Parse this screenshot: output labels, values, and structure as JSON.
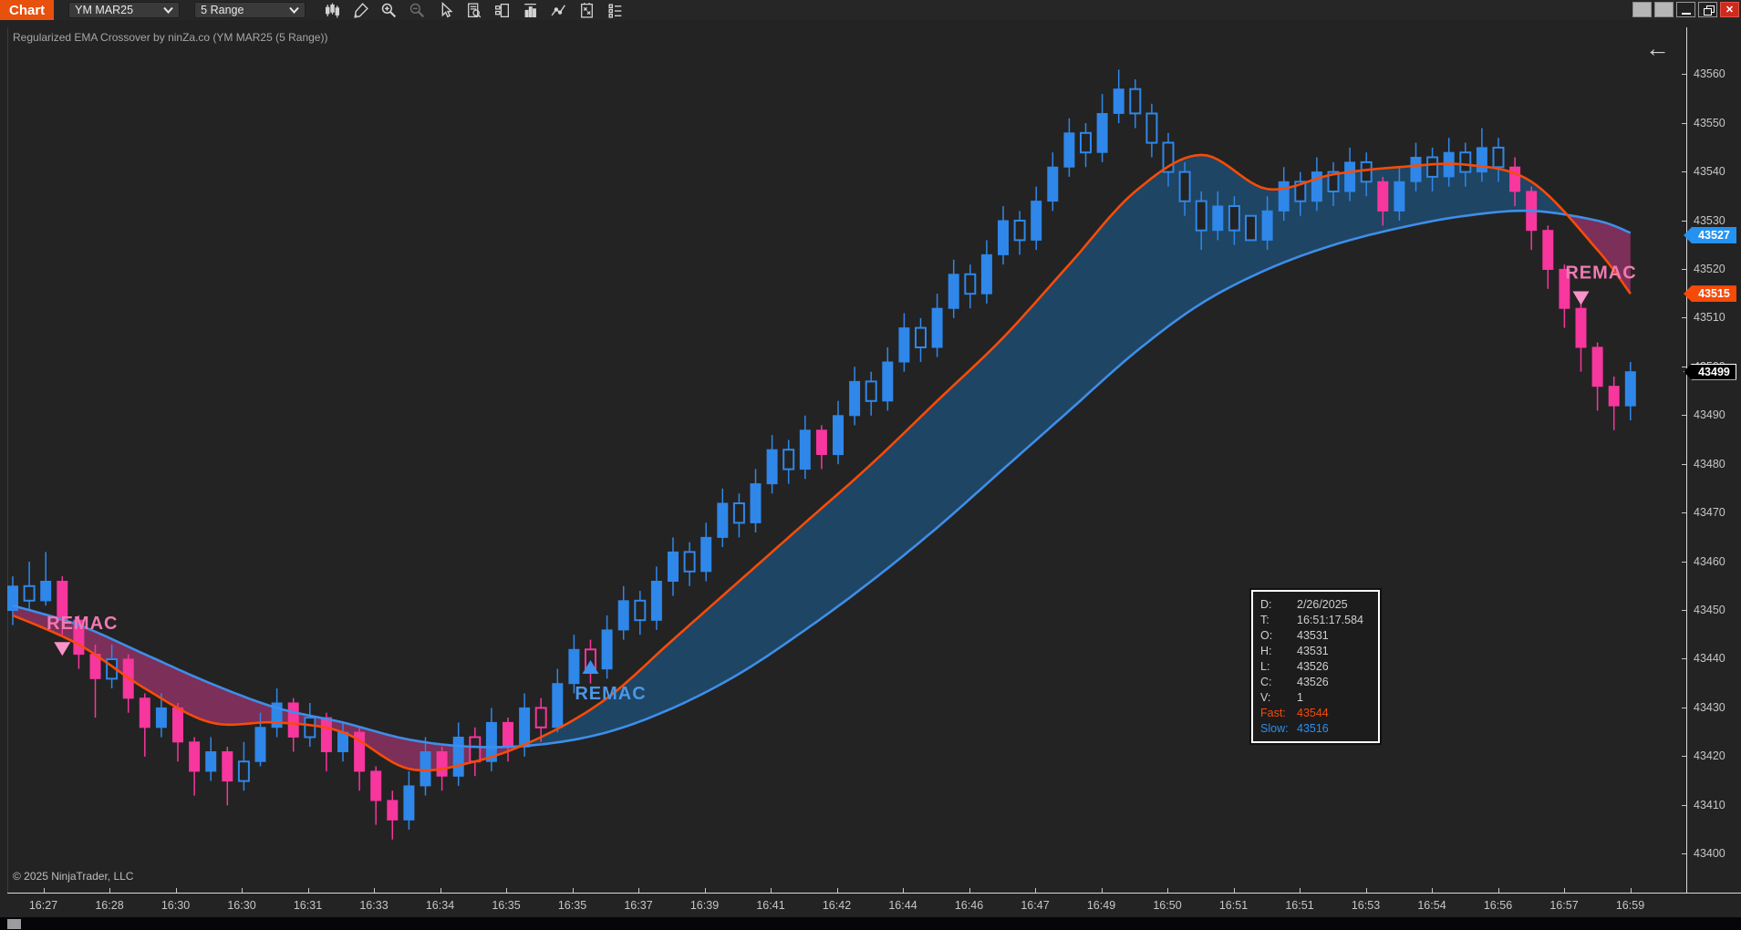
{
  "titlebar": {
    "tab_label": "Chart",
    "instrument": "YM MAR25",
    "period": "5 Range"
  },
  "toolbar": {
    "icons": [
      "chart-style",
      "drawing-tools",
      "zoom-in",
      "zoom-out",
      "cursor",
      "data-box",
      "chart-trader",
      "volume",
      "regression-channel",
      "strategies",
      "properties"
    ],
    "disabled_icons": [
      "zoom-out"
    ]
  },
  "window_controls": [
    "unused-1",
    "unused-2",
    "minimize",
    "restore",
    "close"
  ],
  "chart": {
    "label": "Regularized EMA Crossover by ninZa.co (YM MAR25 (5 Range))",
    "copyright": "© 2025 NinjaTrader, LLC",
    "scroll_arrow": "←"
  },
  "data_box": {
    "rows": [
      {
        "label": "D:",
        "value": "2/26/2025"
      },
      {
        "label": "T:",
        "value": "16:51:17.584"
      },
      {
        "label": "O:",
        "value": "43531"
      },
      {
        "label": "H:",
        "value": "43531"
      },
      {
        "label": "L:",
        "value": "43526"
      },
      {
        "label": "C:",
        "value": "43526"
      },
      {
        "label": "V:",
        "value": "1"
      }
    ],
    "fast_label": "Fast:",
    "fast_value": "43544",
    "slow_label": "Slow:",
    "slow_value": "43516"
  },
  "colors": {
    "accent_tab": "#e8500e",
    "candle_up": "#2f87e9",
    "candle_down": "#f7369e",
    "ema_fast": "#f84b08",
    "ema_slow": "#3e8ee9",
    "fill_bull": "#1e4564",
    "fill_bear": "#7c2f58",
    "signal_pink_text": "#ef7ab2",
    "signal_pink_tri": "#fb93c8",
    "signal_blue_text": "#4b97e8",
    "signal_blue_tri": "#3c92ee",
    "badge_blue": "#2492f0",
    "badge_orange": "#f64a08",
    "badge_black": "#000000",
    "axis_text": "#c6c6c6"
  },
  "chart_data": {
    "type": "candlestick",
    "title": "Regularized EMA Crossover by ninZa.co (YM MAR25 (5 Range))",
    "ylim": [
      43395,
      43565
    ],
    "price_ticks": [
      43560,
      43550,
      43540,
      43530,
      43520,
      43510,
      43500,
      43490,
      43480,
      43470,
      43460,
      43450,
      43440,
      43430,
      43420,
      43410,
      43400
    ],
    "time_labels": [
      "16:27",
      "16:28",
      "16:30",
      "16:30",
      "16:31",
      "16:33",
      "16:34",
      "16:35",
      "16:35",
      "16:37",
      "16:39",
      "16:41",
      "16:42",
      "16:44",
      "16:46",
      "16:47",
      "16:49",
      "16:50",
      "16:51",
      "16:51",
      "16:53",
      "16:54",
      "16:56",
      "16:57",
      "16:59"
    ],
    "candles": [
      [
        43450,
        43457,
        43447,
        43455,
        "b"
      ],
      [
        43455,
        43460,
        43450,
        43452,
        "bh"
      ],
      [
        43452,
        43462,
        43451,
        43456,
        "b"
      ],
      [
        43456,
        43457,
        43445,
        43448,
        "p"
      ],
      [
        43448,
        43449,
        43438,
        43441,
        "p"
      ],
      [
        43441,
        43443,
        43428,
        43436,
        "p"
      ],
      [
        43436,
        43443,
        43434,
        43440,
        "bh"
      ],
      [
        43440,
        43441,
        43429,
        43432,
        "p"
      ],
      [
        43432,
        43433,
        43420,
        43426,
        "p"
      ],
      [
        43426,
        43433,
        43424,
        43430,
        "b"
      ],
      [
        43430,
        43431,
        43419,
        43423,
        "p"
      ],
      [
        43423,
        43424,
        43412,
        43417,
        "p"
      ],
      [
        43417,
        43424,
        43415,
        43421,
        "b"
      ],
      [
        43421,
        43422,
        43410,
        43415,
        "p"
      ],
      [
        43415,
        43423,
        43413,
        43419,
        "bh"
      ],
      [
        43419,
        43429,
        43418,
        43426,
        "b"
      ],
      [
        43426,
        43434,
        43424,
        43431,
        "b"
      ],
      [
        43431,
        43432,
        43421,
        43424,
        "p"
      ],
      [
        43424,
        43431,
        43422,
        43428,
        "bh"
      ],
      [
        43428,
        43429,
        43417,
        43421,
        "p"
      ],
      [
        43421,
        43427,
        43419,
        43425,
        "b"
      ],
      [
        43425,
        43426,
        43413,
        43417,
        "p"
      ],
      [
        43417,
        43418,
        43406,
        43411,
        "p"
      ],
      [
        43411,
        43413,
        43403,
        43407,
        "p"
      ],
      [
        43407,
        43417,
        43405,
        43414,
        "b"
      ],
      [
        43414,
        43424,
        43412,
        43421,
        "b"
      ],
      [
        43421,
        43422,
        43413,
        43416,
        "p"
      ],
      [
        43416,
        43427,
        43414,
        43424,
        "b"
      ],
      [
        43424,
        43426,
        43416,
        43419,
        "ph"
      ],
      [
        43419,
        43430,
        43417,
        43427,
        "b"
      ],
      [
        43427,
        43428,
        43419,
        43422,
        "p"
      ],
      [
        43422,
        43433,
        43420,
        43430,
        "b"
      ],
      [
        43430,
        43432,
        43423,
        43426,
        "ph"
      ],
      [
        43426,
        43438,
        43425,
        43435,
        "b"
      ],
      [
        43435,
        43445,
        43433,
        43442,
        "b"
      ],
      [
        43442,
        43444,
        43435,
        43438,
        "ph"
      ],
      [
        43438,
        43449,
        43436,
        43446,
        "b"
      ],
      [
        43446,
        43455,
        43444,
        43452,
        "b"
      ],
      [
        43452,
        43454,
        43445,
        43448,
        "bh"
      ],
      [
        43448,
        43459,
        43446,
        43456,
        "b"
      ],
      [
        43456,
        43465,
        43453,
        43462,
        "b"
      ],
      [
        43462,
        43464,
        43455,
        43458,
        "bh"
      ],
      [
        43458,
        43468,
        43456,
        43465,
        "b"
      ],
      [
        43465,
        43475,
        43463,
        43472,
        "b"
      ],
      [
        43472,
        43474,
        43465,
        43468,
        "bh"
      ],
      [
        43468,
        43479,
        43466,
        43476,
        "b"
      ],
      [
        43476,
        43486,
        43474,
        43483,
        "b"
      ],
      [
        43483,
        43485,
        43476,
        43479,
        "bh"
      ],
      [
        43479,
        43490,
        43477,
        43487,
        "b"
      ],
      [
        43487,
        43488,
        43479,
        43482,
        "p"
      ],
      [
        43482,
        43493,
        43480,
        43490,
        "b"
      ],
      [
        43490,
        43500,
        43488,
        43497,
        "b"
      ],
      [
        43497,
        43499,
        43490,
        43493,
        "bh"
      ],
      [
        43493,
        43504,
        43491,
        43501,
        "b"
      ],
      [
        43501,
        43511,
        43499,
        43508,
        "b"
      ],
      [
        43508,
        43510,
        43501,
        43504,
        "bh"
      ],
      [
        43504,
        43515,
        43502,
        43512,
        "b"
      ],
      [
        43512,
        43522,
        43510,
        43519,
        "b"
      ],
      [
        43519,
        43521,
        43512,
        43515,
        "bh"
      ],
      [
        43515,
        43526,
        43513,
        43523,
        "b"
      ],
      [
        43523,
        43533,
        43521,
        43530,
        "b"
      ],
      [
        43530,
        43532,
        43523,
        43526,
        "bh"
      ],
      [
        43526,
        43537,
        43524,
        43534,
        "b"
      ],
      [
        43534,
        43544,
        43532,
        43541,
        "b"
      ],
      [
        43541,
        43551,
        43539,
        43548,
        "b"
      ],
      [
        43548,
        43550,
        43541,
        43544,
        "bh"
      ],
      [
        43544,
        43556,
        43542,
        43552,
        "b"
      ],
      [
        43552,
        43561,
        43550,
        43557,
        "b"
      ],
      [
        43557,
        43559,
        43549,
        43552,
        "bh"
      ],
      [
        43552,
        43554,
        43543,
        43546,
        "bh"
      ],
      [
        43546,
        43548,
        43537,
        43540,
        "bh"
      ],
      [
        43540,
        43542,
        43531,
        43534,
        "bh"
      ],
      [
        43534,
        43536,
        43524,
        43528,
        "bh"
      ],
      [
        43528,
        43536,
        43526,
        43533,
        "b"
      ],
      [
        43533,
        43535,
        43525,
        43528,
        "bh"
      ],
      [
        43531,
        43531,
        43526,
        43526,
        "bh"
      ],
      [
        43526,
        43535,
        43524,
        43532,
        "b"
      ],
      [
        43532,
        43541,
        43530,
        43538,
        "b"
      ],
      [
        43538,
        43540,
        43531,
        43534,
        "bh"
      ],
      [
        43534,
        43543,
        43532,
        43540,
        "b"
      ],
      [
        43540,
        43542,
        43533,
        43536,
        "bh"
      ],
      [
        43536,
        43545,
        43534,
        43542,
        "b"
      ],
      [
        43542,
        43544,
        43535,
        43538,
        "bh"
      ],
      [
        43538,
        43539,
        43529,
        43532,
        "p"
      ],
      [
        43532,
        43541,
        43530,
        43538,
        "b"
      ],
      [
        43538,
        43546,
        43536,
        43543,
        "b"
      ],
      [
        43543,
        43545,
        43536,
        43539,
        "bh"
      ],
      [
        43539,
        43547,
        43537,
        43544,
        "b"
      ],
      [
        43544,
        43546,
        43537,
        43540,
        "bh"
      ],
      [
        43540,
        43549,
        43538,
        43545,
        "b"
      ],
      [
        43545,
        43547,
        43538,
        43541,
        "bh"
      ],
      [
        43541,
        43543,
        43533,
        43536,
        "p"
      ],
      [
        43536,
        43537,
        43524,
        43528,
        "p"
      ],
      [
        43528,
        43529,
        43516,
        43520,
        "p"
      ],
      [
        43520,
        43521,
        43508,
        43512,
        "p"
      ],
      [
        43512,
        43513,
        43499,
        43504,
        "p"
      ],
      [
        43504,
        43505,
        43491,
        43496,
        "p"
      ],
      [
        43496,
        43498,
        43487,
        43492,
        "p"
      ],
      [
        43492,
        43501,
        43489,
        43499,
        "b"
      ]
    ],
    "ema_sample_bars": [
      0,
      4,
      8,
      12,
      16,
      20,
      24,
      28,
      32,
      36,
      40,
      44,
      48,
      52,
      56,
      60,
      64,
      68,
      72,
      76,
      80,
      84,
      88,
      92,
      96,
      98
    ],
    "ema_slow": [
      43451,
      43447,
      43441,
      43435,
      43430,
      43427,
      43423.5,
      43422,
      43422.5,
      43425,
      43430,
      43437,
      43446,
      43456,
      43467,
      43479,
      43491,
      43503,
      43513,
      43520,
      43525,
      43528.5,
      43531,
      43532,
      43530,
      43527.5
    ],
    "ema_fast": [
      43449,
      43443,
      43434,
      43427,
      43427,
      43425,
      43417.5,
      43419,
      43424,
      43432,
      43444,
      43456,
      43468,
      43480,
      43493,
      43506,
      43521,
      43536,
      43543.5,
      43536.5,
      43539.5,
      43541,
      43541.5,
      43538,
      43524,
      43515
    ],
    "signals": [
      {
        "label": "REMAC",
        "bar": 3,
        "price": 43443.5,
        "dir": "down",
        "kind": "bear"
      },
      {
        "label": "REMAC",
        "bar": 35,
        "price": 43437,
        "dir": "up",
        "kind": "bull"
      },
      {
        "label": "REMAC",
        "bar": 95,
        "price": 43515.5,
        "dir": "down",
        "kind": "bear"
      }
    ],
    "badges": [
      {
        "value": "43527",
        "price": 43527,
        "type": "slow"
      },
      {
        "value": "43515",
        "price": 43515,
        "type": "fast"
      },
      {
        "value": "43499",
        "price": 43499,
        "type": "last"
      }
    ],
    "last_price": 43499
  }
}
